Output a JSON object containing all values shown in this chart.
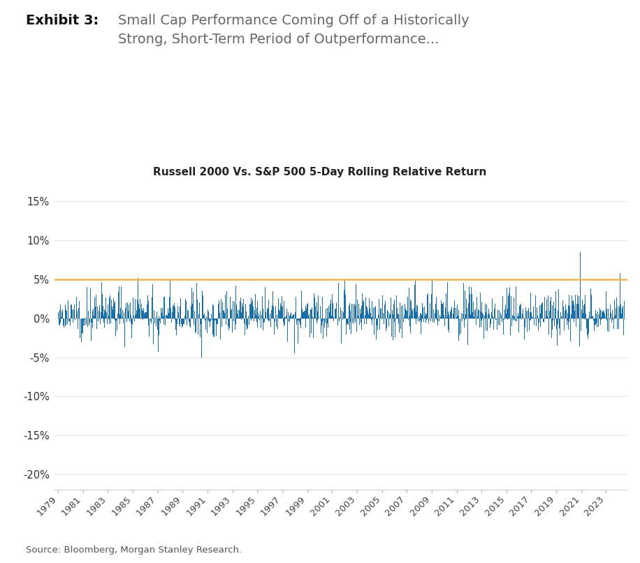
{
  "title_exhibit": "Exhibit 3:",
  "title_main_rest": "Small Cap Performance Coming Off of a Historically\nStrong, Short-Term Period of Outperformance...",
  "subtitle": "Russell 2000 Vs. S&P 500 5-Day Rolling Relative Return",
  "bar_color": "#1a6fa8",
  "hline_value": 5.0,
  "hline_color": "#e8b84b",
  "ylim": [
    -22,
    17
  ],
  "yticks": [
    -20,
    -15,
    -10,
    -5,
    0,
    5,
    10,
    15
  ],
  "ytick_labels": [
    "-20%",
    "-15%",
    "-10%",
    "-5%",
    "0%",
    "5%",
    "10%",
    "15%"
  ],
  "start_year": 1979,
  "end_year": 2024,
  "source_text": "Source: Bloomberg, Morgan Stanley Research.",
  "background_color": "#ffffff",
  "hline_lw": 1.8,
  "seed": 42,
  "xtick_years": [
    1979,
    1981,
    1983,
    1985,
    1987,
    1989,
    1991,
    1993,
    1995,
    1997,
    1999,
    2001,
    2003,
    2005,
    2007,
    2009,
    2011,
    2013,
    2015,
    2017,
    2019,
    2021,
    2023
  ]
}
